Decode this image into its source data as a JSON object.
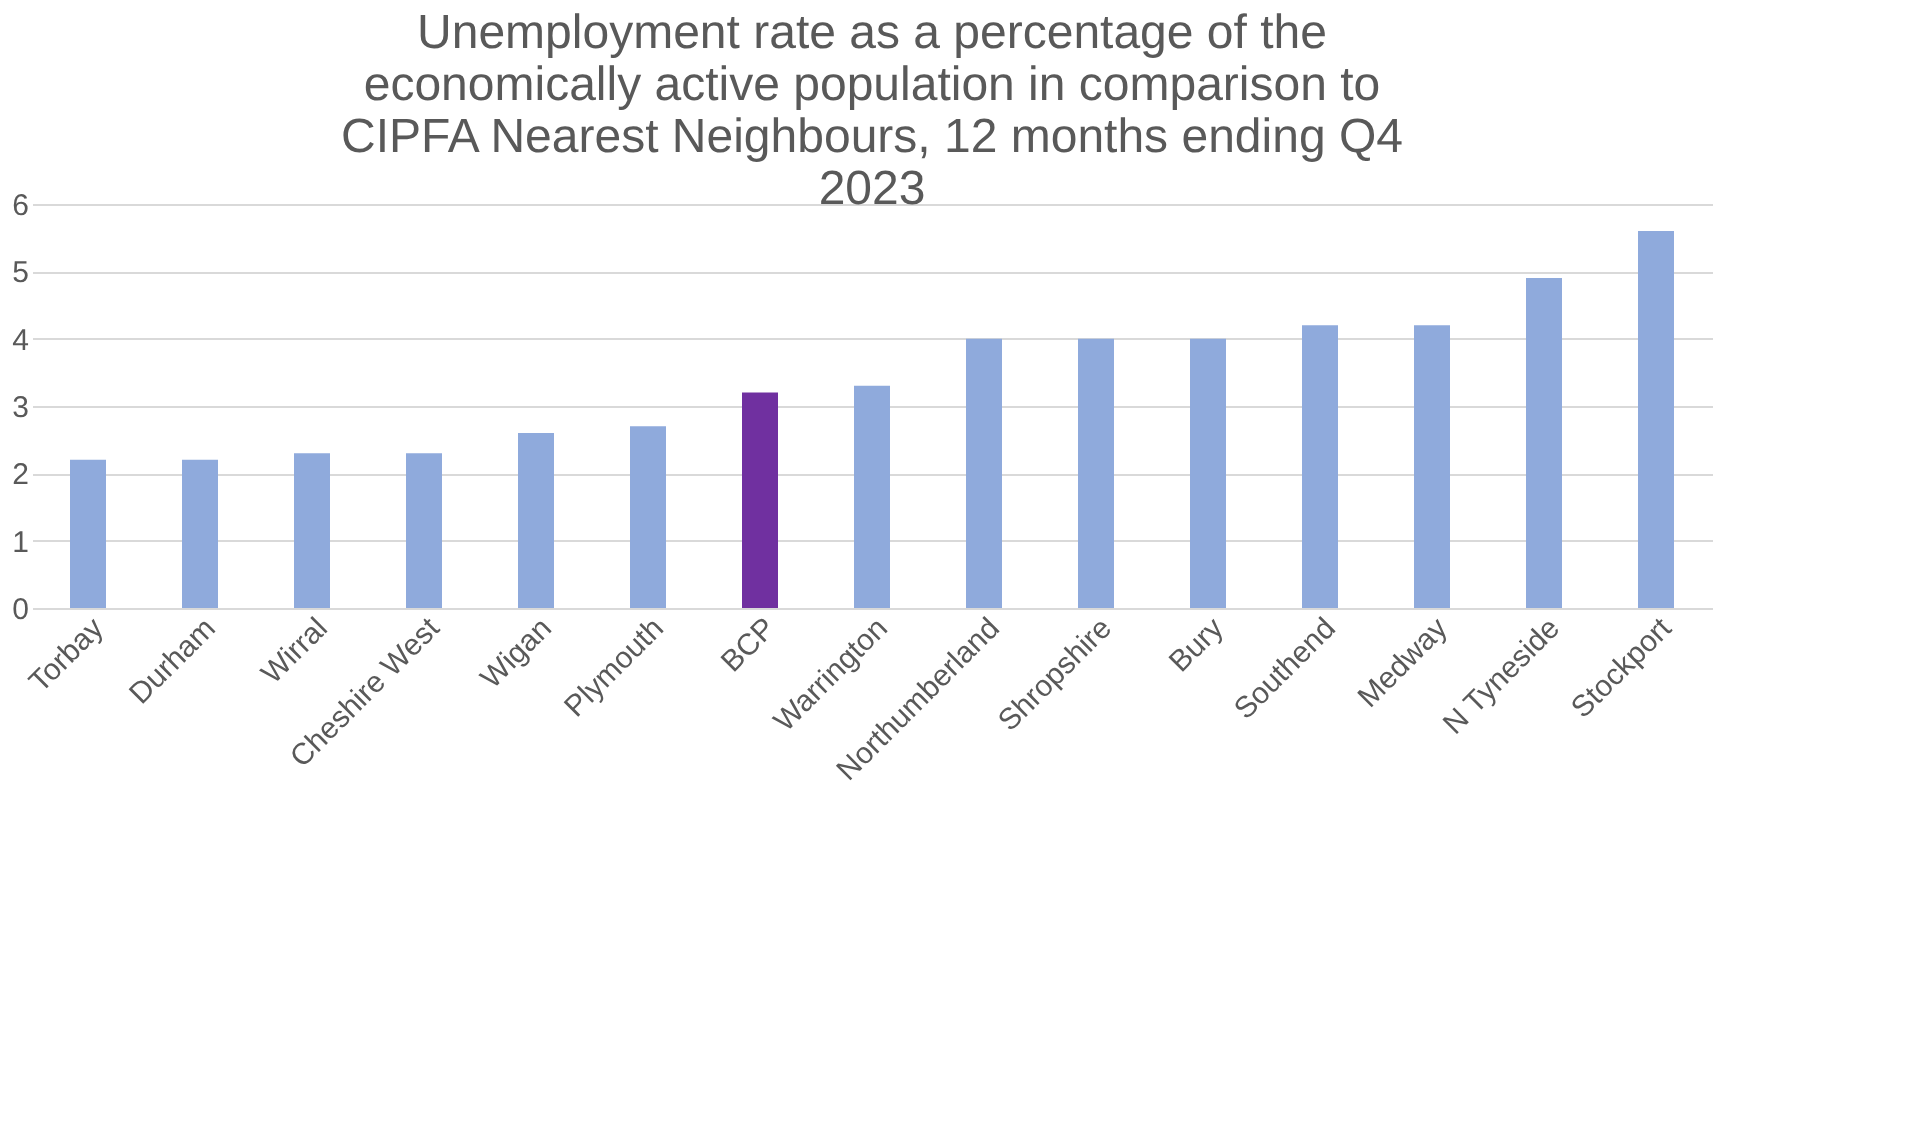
{
  "chart_data": {
    "type": "bar",
    "title": "Unemployment rate as a percentage of the economically active population in comparison to CIPFA Nearest Neighbours, 12 months ending Q4 2023",
    "categories": [
      "Torbay",
      "Durham",
      "Wirral",
      "Cheshire West",
      "Wigan",
      "Plymouth",
      "BCP",
      "Warrington",
      "Northumberland",
      "Shropshire",
      "Bury",
      "Southend",
      "Medway",
      "N Tyneside",
      "Stockport"
    ],
    "values": [
      2.2,
      2.2,
      2.3,
      2.3,
      2.6,
      2.7,
      3.2,
      3.3,
      4.0,
      4.0,
      4.0,
      4.2,
      4.2,
      4.9,
      5.6
    ],
    "colors": [
      "#8faadc",
      "#8faadc",
      "#8faadc",
      "#8faadc",
      "#8faadc",
      "#8faadc",
      "#7030a0",
      "#8faadc",
      "#8faadc",
      "#8faadc",
      "#8faadc",
      "#8faadc",
      "#8faadc",
      "#8faadc",
      "#8faadc"
    ],
    "ylim": [
      0,
      6
    ],
    "yticks": [
      0,
      1,
      2,
      3,
      4,
      5,
      6
    ],
    "grid": "y"
  }
}
